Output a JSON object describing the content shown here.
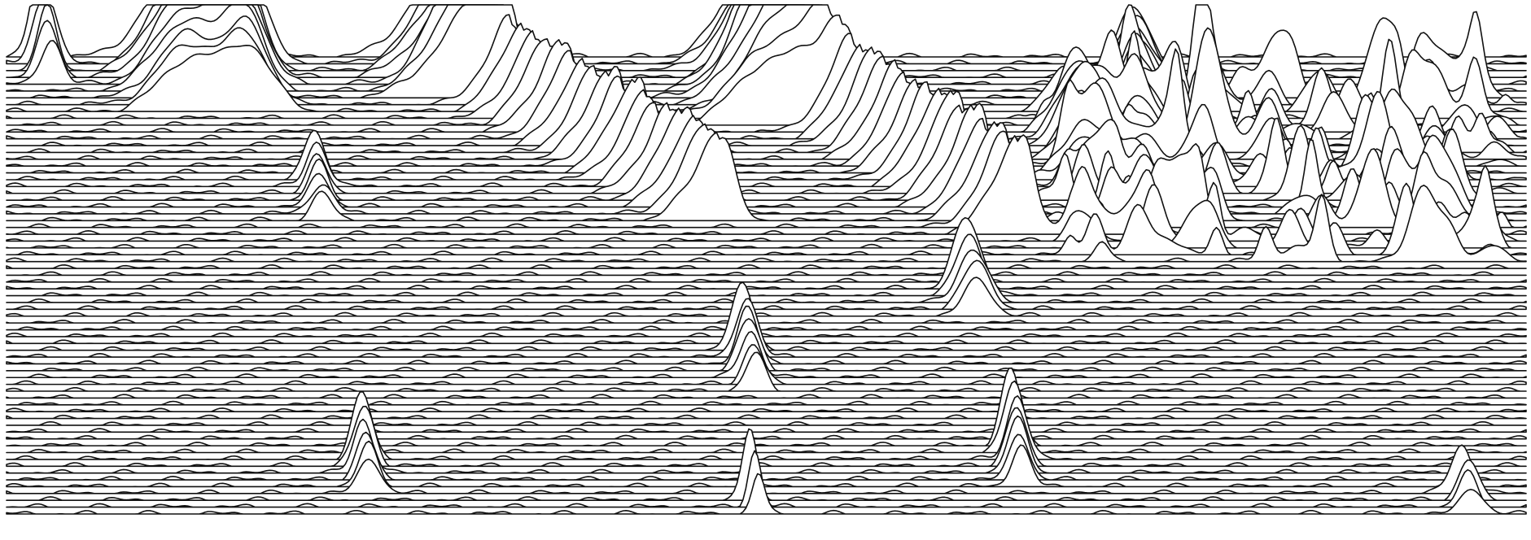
{
  "chart_data": {
    "type": "line",
    "title": "",
    "xlabel": "",
    "ylabel": "",
    "grid": false,
    "legend": "none",
    "line_color": "#111111",
    "background": "#ffffff",
    "series_count": 68,
    "x_ticks": [
      "",
      "",
      "",
      "",
      "",
      "",
      "",
      "",
      "",
      "",
      "",
      "",
      "",
      "",
      "",
      "",
      "",
      "",
      "",
      "",
      "",
      "",
      "",
      "",
      "",
      "",
      "",
      ""
    ],
    "peak_groups": [
      {
        "row_start": 0,
        "row_end": 4,
        "center": 0.026,
        "height": 1.2,
        "width": 0.006
      },
      {
        "row_start": 0,
        "row_end": 8,
        "center": 0.118,
        "height": 1.4,
        "width": 0.018
      },
      {
        "row_start": 1,
        "row_end": 8,
        "center": 0.157,
        "height": 1.5,
        "width": 0.012
      },
      {
        "row_start": 0,
        "row_end": 6,
        "center": 0.299,
        "height": 1.6,
        "width": 0.022
      },
      {
        "row_start": 0,
        "row_end": 10,
        "center": 0.502,
        "height": 1.7,
        "width": 0.02
      },
      {
        "row_start": 10,
        "row_end": 19,
        "center": 0.708,
        "height": 1.1,
        "width": 0.01
      },
      {
        "row_start": 2,
        "row_end": 15,
        "center": 0.745,
        "height": 0.9,
        "width": 0.01
      },
      {
        "row_start": 18,
        "row_end": 24,
        "center": 0.205,
        "height": 0.7,
        "width": 0.006
      },
      {
        "row_start": 34,
        "row_end": 38,
        "center": 0.636,
        "height": 1.0,
        "width": 0.008
      },
      {
        "row_start": 43,
        "row_end": 49,
        "center": 0.489,
        "height": 0.95,
        "width": 0.006
      },
      {
        "row_start": 57,
        "row_end": 63,
        "center": 0.665,
        "height": 1.1,
        "width": 0.006
      },
      {
        "row_start": 59,
        "row_end": 64,
        "center": 0.236,
        "height": 0.95,
        "width": 0.006
      },
      {
        "row_start": 65,
        "row_end": 67,
        "center": 0.492,
        "height": 1.05,
        "width": 0.004
      },
      {
        "row_start": 64,
        "row_end": 67,
        "center": 0.962,
        "height": 0.7,
        "width": 0.006
      }
    ],
    "diagonal_ridges": [
      {
        "row_start": 4,
        "row_end": 24,
        "x_start": 0.308,
        "x_end": 0.468,
        "height": 1.1,
        "width": 0.01
      },
      {
        "row_start": 4,
        "row_end": 26,
        "x_start": 0.505,
        "x_end": 0.665,
        "height": 1.2,
        "width": 0.01
      }
    ],
    "noise_region": {
      "row_start": 6,
      "row_end": 30,
      "x_start": 0.67,
      "x_end": 0.995,
      "amplitude": 1.0
    }
  }
}
